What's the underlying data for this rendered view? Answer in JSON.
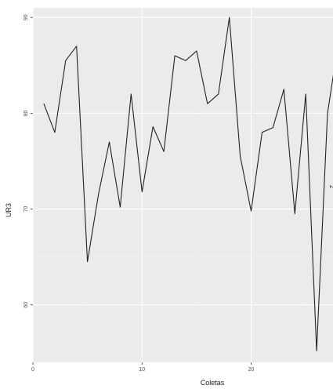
{
  "chart_data": {
    "type": "line",
    "xlabel": "Coletas",
    "ylabel": "UR3",
    "xlim": [
      0,
      27.5
    ],
    "ylim": [
      54,
      91
    ],
    "x_ticks": [
      0,
      10,
      20
    ],
    "x_tick_labels": [
      "0",
      "10",
      "20"
    ],
    "y_ticks": [
      60,
      70,
      80,
      90
    ],
    "y_tick_labels": [
      "60",
      "70",
      "80",
      "90"
    ],
    "grid": true,
    "series": [
      {
        "x": [
          1,
          2,
          3,
          4,
          5,
          6,
          7,
          8,
          9,
          10,
          11,
          12,
          13,
          14,
          15,
          16,
          17,
          18,
          19,
          20,
          21,
          22,
          23,
          24,
          25,
          26,
          27,
          28
        ],
        "values": [
          81,
          78,
          85.5,
          87,
          64.5,
          71.5,
          77,
          70.2,
          82,
          71.8,
          78.6,
          76,
          86,
          85.5,
          86.5,
          81,
          82,
          90,
          75.5,
          69.8,
          78,
          78.5,
          82.5,
          69.5,
          82,
          55.2,
          80,
          87.5
        ]
      }
    ],
    "clipped_text": "Z"
  },
  "colors": {
    "panel": "#ebebeb",
    "grid_major": "#ffffff",
    "grid_minor": "#f4f4f4",
    "line": "#222222"
  }
}
